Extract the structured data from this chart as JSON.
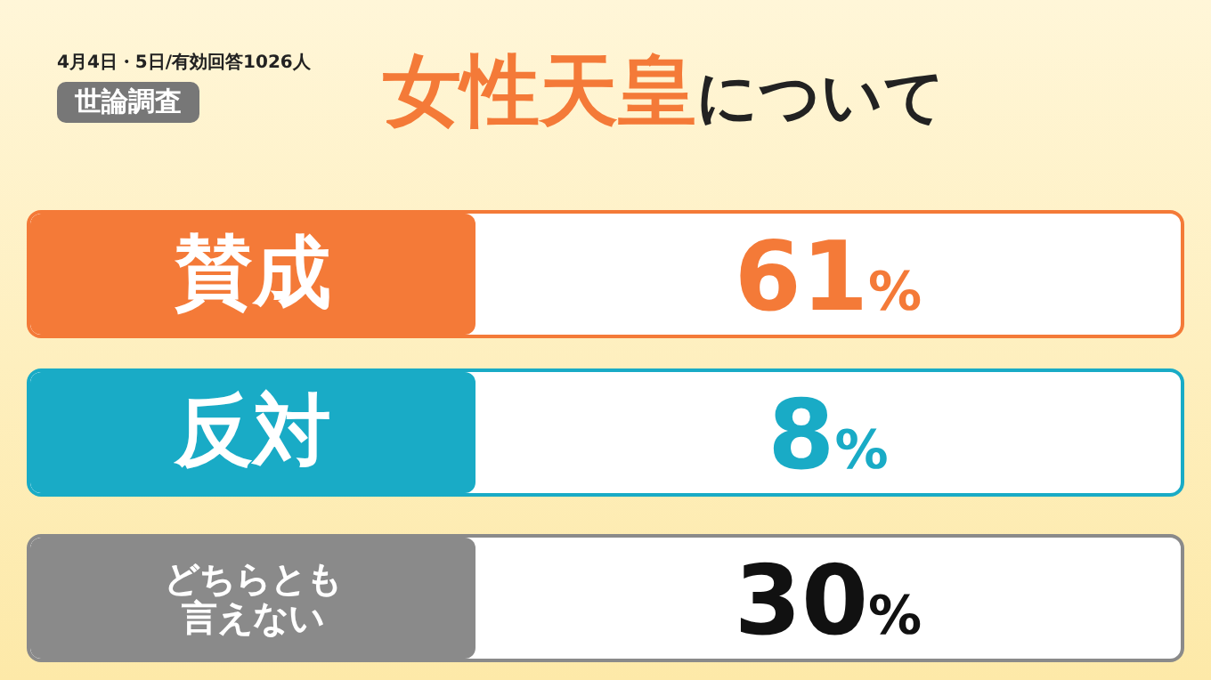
{
  "chart_data": {
    "type": "other",
    "title": "女性天皇について",
    "subtitle": "世論調査",
    "annotations": [
      "4月4日・5日/有効回答1026人"
    ],
    "categories": [
      "賛成",
      "反対",
      "どちらとも言えない"
    ],
    "values": [
      61,
      8,
      30
    ],
    "colors": [
      "#f47a38",
      "#19abc6",
      "#8a8a8a"
    ],
    "value_labels": [
      "61%",
      "8%",
      "30%"
    ]
  }
}
